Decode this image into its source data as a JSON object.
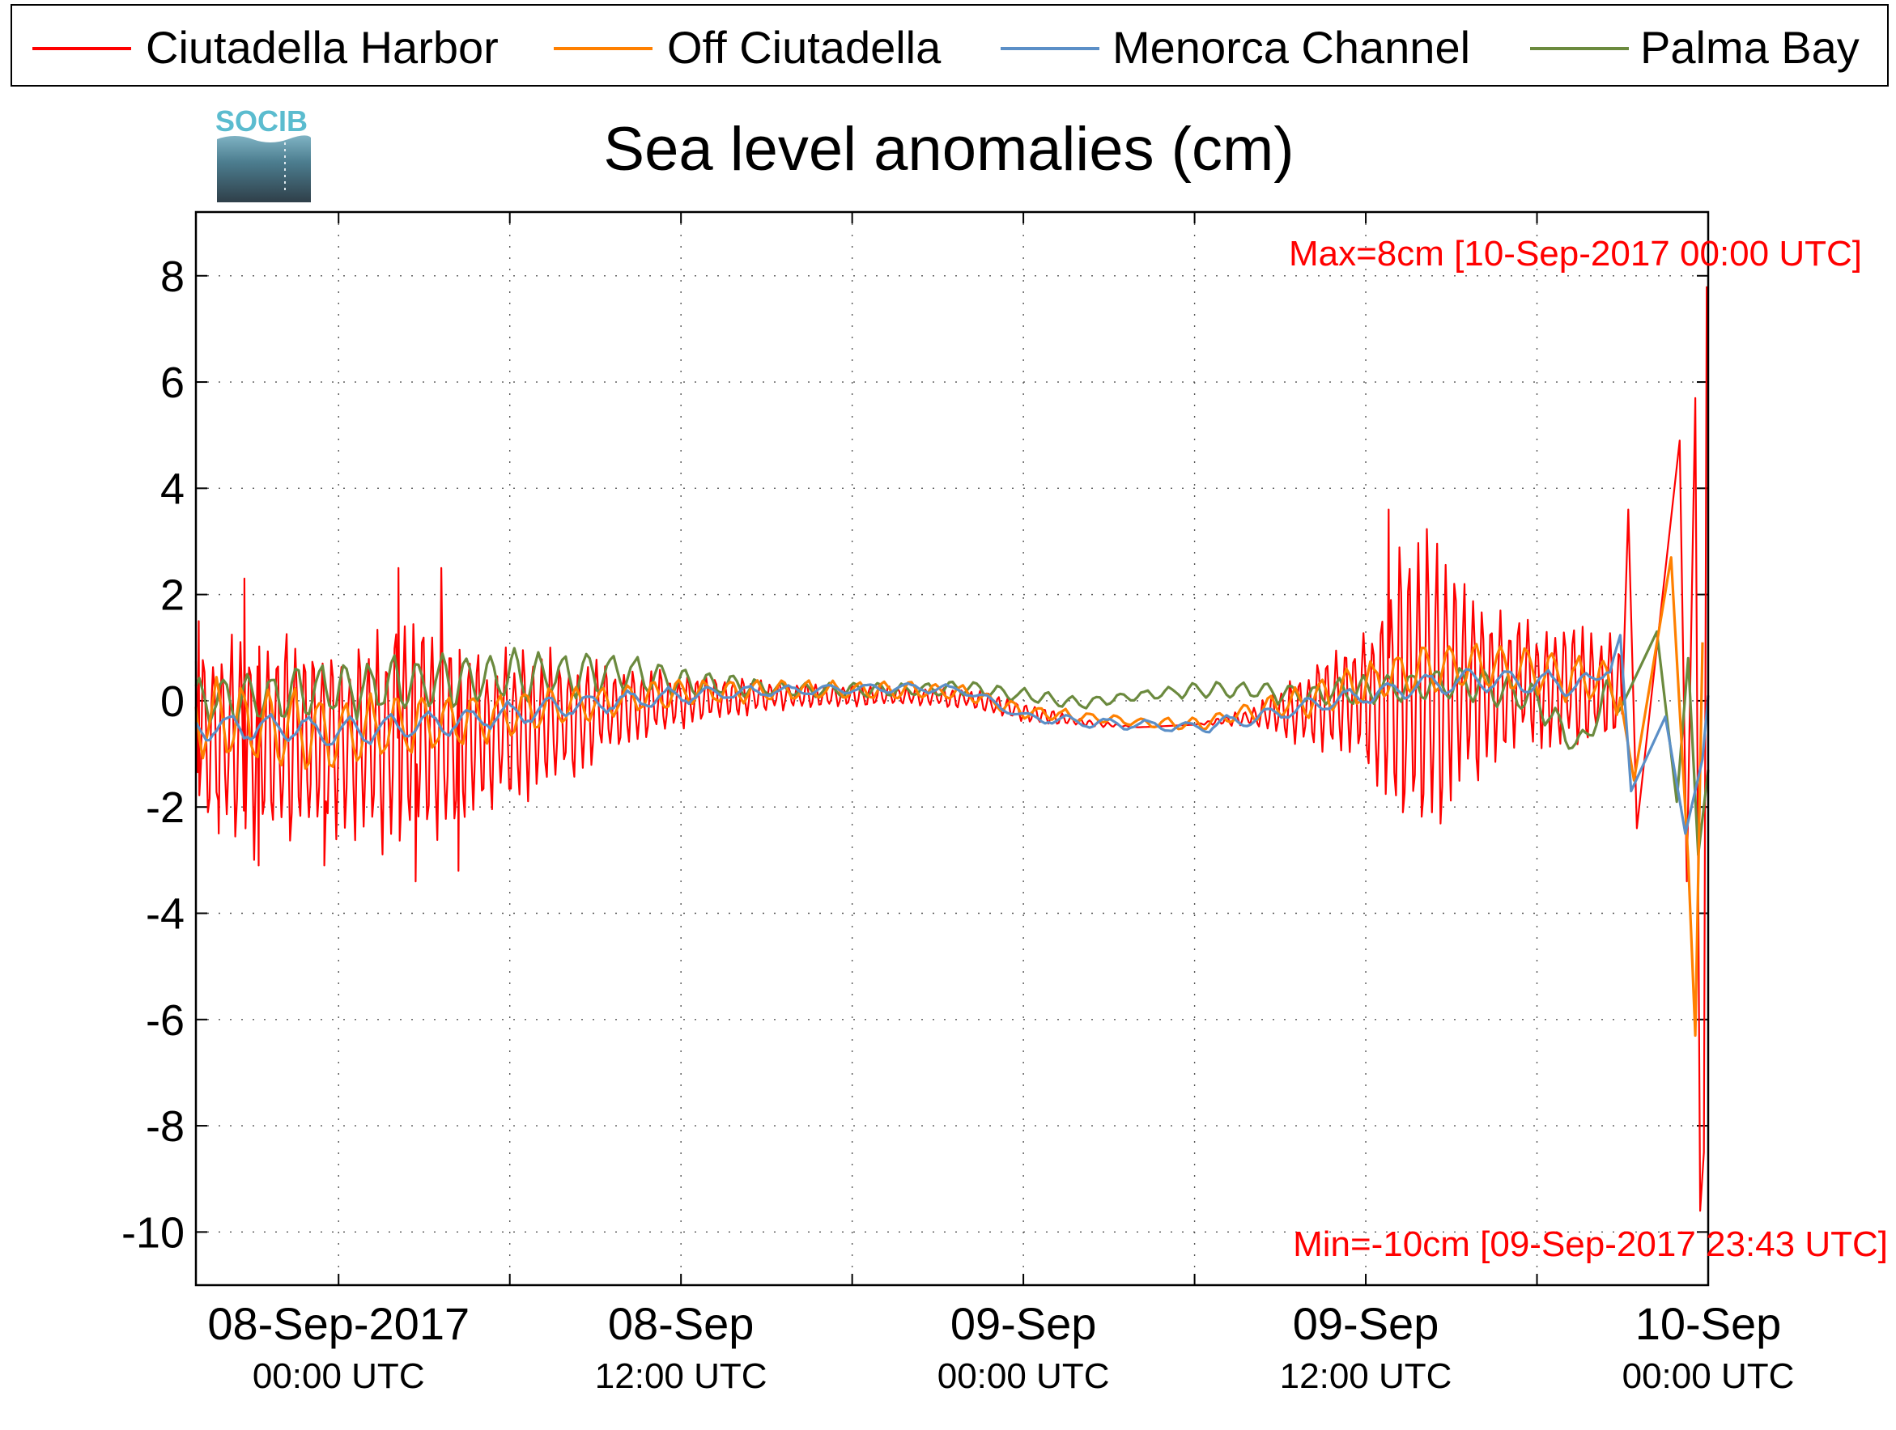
{
  "colors": {
    "ciutadella_harbor": "#ff0000",
    "off_ciutadella": "#ff8000",
    "menorca_channel": "#5b8fc7",
    "palma_bay": "#6b8a3e",
    "annotation": "#ff0000",
    "logo_text": "#5bbccf"
  },
  "logo": {
    "text": "SOCIB"
  },
  "chart_data": {
    "type": "line",
    "title": "Sea level anomalies (cm)",
    "xlabel": "",
    "ylabel": "",
    "ylim": [
      -11,
      9.2
    ],
    "xlim_hours": [
      -5.0,
      48.0
    ],
    "grid": true,
    "legend_position": "top",
    "y_ticks": [
      "8",
      "6",
      "4",
      "2",
      "0",
      "-2",
      "-4",
      "-6",
      "-8",
      "-10"
    ],
    "x_ticks": [
      {
        "date": "08-Sep-2017",
        "time": "00:00 UTC"
      },
      {
        "date": "08-Sep",
        "time": "12:00 UTC"
      },
      {
        "date": "09-Sep",
        "time": "00:00 UTC"
      },
      {
        "date": "09-Sep",
        "time": "12:00 UTC"
      },
      {
        "date": "10-Sep",
        "time": "00:00 UTC"
      }
    ],
    "annotations": {
      "max": "Max=8cm [10-Sep-2017 00:00 UTC]",
      "min": "Min=-10cm [09-Sep-2017 23:43 UTC]"
    },
    "series": [
      {
        "name": "Ciutadella Harbor",
        "envelope": [
          [
            -5,
            2
          ],
          [
            -3,
            2.3
          ],
          [
            -1,
            2.2
          ],
          [
            0,
            1.8
          ],
          [
            1.5,
            2.4
          ],
          [
            3,
            2.5
          ],
          [
            5,
            1.7
          ],
          [
            7,
            1.6
          ],
          [
            8.5,
            1.2
          ],
          [
            10,
            0.9
          ],
          [
            12,
            0.6
          ],
          [
            14,
            0.4
          ],
          [
            16,
            0.3
          ],
          [
            20,
            0.2
          ],
          [
            24,
            0.2
          ],
          [
            28,
            0
          ],
          [
            30,
            0
          ],
          [
            32,
            0.2
          ],
          [
            33,
            0.5
          ],
          [
            34.5,
            1.0
          ],
          [
            36,
            1.4
          ],
          [
            37,
            2.8
          ],
          [
            38,
            3.5
          ],
          [
            39,
            2.5
          ],
          [
            41,
            1.4
          ],
          [
            43,
            1.2
          ],
          [
            44.5,
            1.2
          ],
          [
            45.5,
            1.0
          ],
          [
            46.5,
            2.5
          ],
          [
            47.3,
            5
          ],
          [
            47.8,
            6
          ],
          [
            48,
            7
          ]
        ],
        "baseline": [
          [
            -5,
            -0.6
          ],
          [
            -3,
            -0.7
          ],
          [
            0,
            -0.8
          ],
          [
            2,
            -0.7
          ],
          [
            4,
            -0.6
          ],
          [
            6,
            -0.5
          ],
          [
            8,
            -0.3
          ],
          [
            10,
            -0.1
          ],
          [
            12,
            0
          ],
          [
            14,
            0.1
          ],
          [
            16,
            0.1
          ],
          [
            20,
            0.1
          ],
          [
            22,
            0.05
          ],
          [
            24,
            -0.2
          ],
          [
            26,
            -0.4
          ],
          [
            28,
            -0.5
          ],
          [
            30,
            -0.45
          ],
          [
            32,
            -0.3
          ],
          [
            34,
            -0.1
          ],
          [
            36,
            0.1
          ],
          [
            38,
            0.25
          ],
          [
            40,
            0.3
          ],
          [
            42,
            0.3
          ],
          [
            44,
            0.2
          ],
          [
            46,
            0.1
          ],
          [
            48,
            0
          ]
        ],
        "period": 0.32,
        "points": [
          [
            -4.9,
            1.5
          ],
          [
            -4.2,
            -2.5
          ],
          [
            -3.3,
            2.3
          ],
          [
            -2.8,
            -3.1
          ],
          [
            -0.5,
            -3.1
          ],
          [
            2.1,
            2.5
          ],
          [
            2.7,
            -3.4
          ],
          [
            3.6,
            2.5
          ],
          [
            4.2,
            -3.2
          ],
          [
            36.8,
            3.6
          ],
          [
            37.3,
            -2.1
          ],
          [
            45.2,
            3.6
          ],
          [
            45.5,
            -2.4
          ],
          [
            47.0,
            4.9
          ],
          [
            47.25,
            -3.4
          ],
          [
            47.55,
            5.7
          ],
          [
            47.72,
            -9.6
          ],
          [
            47.85,
            -8.5
          ],
          [
            47.95,
            7.8
          ]
        ]
      },
      {
        "name": "Off Ciutadella",
        "envelope": [
          [
            -5,
            0.9
          ],
          [
            0,
            0.8
          ],
          [
            4,
            0.6
          ],
          [
            8,
            0.4
          ],
          [
            12,
            0.3
          ],
          [
            16,
            0.2
          ],
          [
            24,
            0.15
          ],
          [
            28,
            0.1
          ],
          [
            32,
            0.2
          ],
          [
            36,
            0.5
          ],
          [
            40,
            0.5
          ],
          [
            44,
            0.5
          ],
          [
            46,
            0.8
          ],
          [
            48,
            1.5
          ]
        ],
        "baseline": [
          [
            -5,
            -0.3
          ],
          [
            -2,
            -0.5
          ],
          [
            0,
            -0.6
          ],
          [
            4,
            -0.4
          ],
          [
            8,
            -0.1
          ],
          [
            12,
            0.15
          ],
          [
            16,
            0.2
          ],
          [
            20,
            0.2
          ],
          [
            22,
            0.15
          ],
          [
            24,
            -0.2
          ],
          [
            28,
            -0.4
          ],
          [
            30,
            -0.45
          ],
          [
            32,
            -0.2
          ],
          [
            34,
            0
          ],
          [
            36,
            0.3
          ],
          [
            38,
            0.6
          ],
          [
            40,
            0.65
          ],
          [
            42,
            0.55
          ],
          [
            44,
            0.35
          ],
          [
            46,
            0.3
          ],
          [
            48,
            0
          ]
        ],
        "period": 0.9,
        "points": [
          [
            45.4,
            -1.5
          ],
          [
            46.7,
            2.7
          ],
          [
            47.3,
            -3
          ],
          [
            47.55,
            -6.3
          ],
          [
            47.8,
            1.1
          ]
        ]
      },
      {
        "name": "Menorca Channel",
        "envelope": [
          [
            -5,
            0.3
          ],
          [
            0,
            0.3
          ],
          [
            8,
            0.25
          ],
          [
            16,
            0.1
          ],
          [
            24,
            0.1
          ],
          [
            32,
            0.15
          ],
          [
            36,
            0.2
          ],
          [
            40,
            0.25
          ],
          [
            44,
            0.25
          ],
          [
            46,
            0.5
          ],
          [
            48,
            1.0
          ]
        ],
        "baseline": [
          [
            -5,
            -0.5
          ],
          [
            -2,
            -0.5
          ],
          [
            0,
            -0.6
          ],
          [
            4,
            -0.4
          ],
          [
            8,
            -0.1
          ],
          [
            12,
            0.1
          ],
          [
            16,
            0.2
          ],
          [
            20,
            0.25
          ],
          [
            22,
            0.2
          ],
          [
            24,
            -0.3
          ],
          [
            26,
            -0.4
          ],
          [
            28,
            -0.45
          ],
          [
            30,
            -0.5
          ],
          [
            32,
            -0.35
          ],
          [
            34,
            -0.1
          ],
          [
            36,
            0.1
          ],
          [
            38,
            0.3
          ],
          [
            40,
            0.4
          ],
          [
            42,
            0.35
          ],
          [
            44,
            0.3
          ],
          [
            45,
            1.2
          ],
          [
            46,
            0.5
          ],
          [
            48,
            -0.2
          ]
        ],
        "period": 1.4,
        "points": [
          [
            45.3,
            -1.7
          ],
          [
            46.5,
            -0.3
          ],
          [
            47.2,
            -2.5
          ],
          [
            47.8,
            -1.1
          ],
          [
            48,
            0.1
          ]
        ]
      },
      {
        "name": "Palma Bay",
        "envelope": [
          [
            -5,
            0.5
          ],
          [
            0,
            0.6
          ],
          [
            5,
            0.6
          ],
          [
            8,
            0.5
          ],
          [
            12,
            0.3
          ],
          [
            16,
            0.15
          ],
          [
            24,
            0.15
          ],
          [
            28,
            0.1
          ],
          [
            32,
            0.2
          ],
          [
            36,
            0.3
          ],
          [
            40,
            0.35
          ],
          [
            44,
            0.3
          ],
          [
            46,
            0.7
          ],
          [
            48,
            1.2
          ]
        ],
        "baseline": [
          [
            -5,
            0
          ],
          [
            -2,
            0.1
          ],
          [
            0,
            0.2
          ],
          [
            4,
            0.4
          ],
          [
            8,
            0.5
          ],
          [
            10,
            0.55
          ],
          [
            12,
            0.35
          ],
          [
            16,
            0.2
          ],
          [
            20,
            0.2
          ],
          [
            22,
            0.25
          ],
          [
            24,
            0.1
          ],
          [
            26,
            -0.05
          ],
          [
            28,
            0.1
          ],
          [
            30,
            0.2
          ],
          [
            32,
            0.2
          ],
          [
            34,
            0.1
          ],
          [
            36,
            0.2
          ],
          [
            38,
            0.3
          ],
          [
            40,
            0.3
          ],
          [
            42,
            0.0
          ],
          [
            43.5,
            -0.9
          ],
          [
            44.5,
            0.1
          ],
          [
            46,
            0.3
          ],
          [
            48,
            -0.5
          ]
        ],
        "period": 0.85,
        "points": [
          [
            46.2,
            1.3
          ],
          [
            46.9,
            -1.9
          ],
          [
            47.3,
            0.8
          ],
          [
            47.65,
            -2.9
          ],
          [
            48,
            -1.3
          ]
        ]
      }
    ]
  }
}
